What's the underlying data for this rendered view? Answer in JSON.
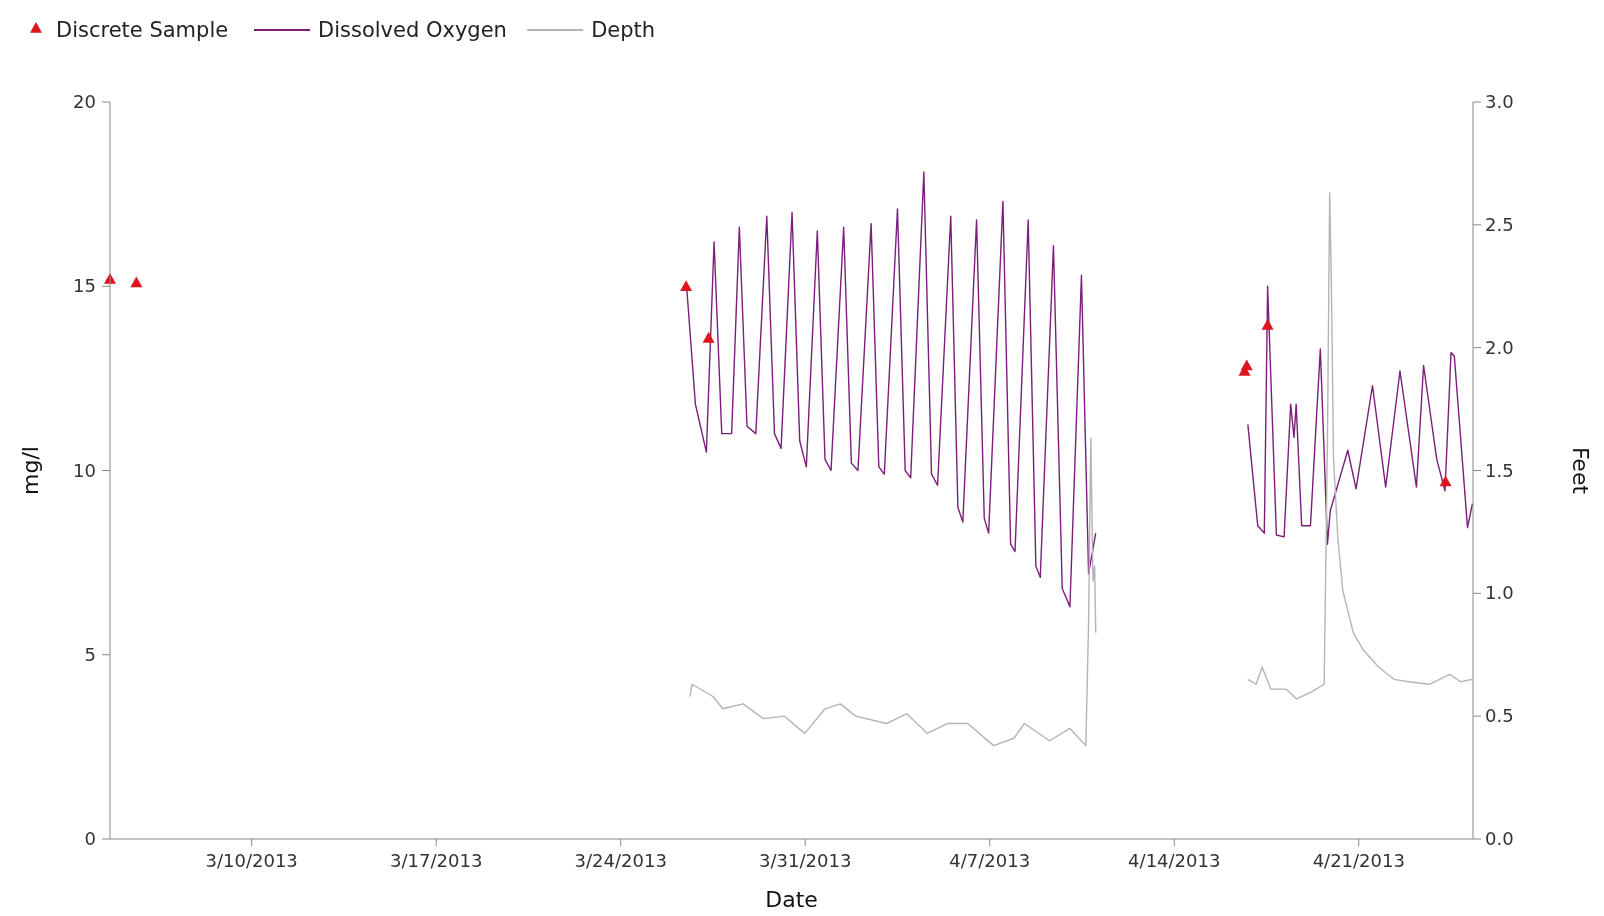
{
  "chart_data": {
    "type": "line",
    "xlabel": "Date",
    "ylabel": "mg/l",
    "y2label": "Feet",
    "xlim": [
      "2013-03-04T15:00",
      "2013-04-25T08:00"
    ],
    "xticks": [
      {
        "value": "2013-03-10",
        "label": "3/10/2013"
      },
      {
        "value": "2013-03-17",
        "label": "3/17/2013"
      },
      {
        "value": "2013-03-24",
        "label": "3/24/2013"
      },
      {
        "value": "2013-03-31",
        "label": "3/31/2013"
      },
      {
        "value": "2013-04-07",
        "label": "4/7/2013"
      },
      {
        "value": "2013-04-14",
        "label": "4/14/2013"
      },
      {
        "value": "2013-04-21",
        "label": "4/21/2013"
      }
    ],
    "ylim": [
      0,
      20
    ],
    "yticks": [
      0,
      5,
      10,
      15,
      20
    ],
    "y2lim": [
      0,
      3
    ],
    "y2ticks": [
      {
        "value": 0,
        "label": "0.0"
      },
      0.5,
      {
        "value": 1,
        "label": "1.0"
      },
      1.5,
      {
        "value": 2,
        "label": "2.0"
      },
      2.5,
      {
        "value": 3,
        "label": "3.0"
      }
    ],
    "legend": "top left",
    "grid": false,
    "line_style": "solid",
    "series": [
      {
        "name": "Discrete Sample",
        "type": "scatter",
        "marker": "triangle",
        "color": "#e0141e",
        "x": [
          "2013-03-04T15:00",
          "2013-03-05T15:00",
          "2013-03-26T11:30",
          "2013-03-27T08:00",
          "2013-04-16T16:00",
          "2013-04-16T18:00",
          "2013-04-17T13:00",
          "2013-04-24T07:00"
        ],
        "values": [
          15.2,
          15.1,
          15.0,
          13.6,
          12.7,
          12.85,
          13.95,
          9.7
        ]
      },
      {
        "name": "Dissolved Oxygen",
        "color": "#7b1f7a",
        "x": [
          "2013-03-26T12:00",
          "2013-03-26T20:00",
          "2013-03-27T06:00",
          "2013-03-27T13:00",
          "2013-03-27T20:00",
          "2013-03-28T05:00",
          "2013-03-28T12:00",
          "2013-03-28T19:00",
          "2013-03-29T03:00",
          "2013-03-29T13:00",
          "2013-03-29T20:00",
          "2013-03-30T02:00",
          "2013-03-30T12:00",
          "2013-03-30T19:00",
          "2013-03-31T01:00",
          "2013-03-31T11:00",
          "2013-03-31T18:00",
          "2013-03-31T23:30",
          "2013-04-01T11:00",
          "2013-04-01T18:00",
          "2013-04-02T00:00",
          "2013-04-02T12:00",
          "2013-04-02T19:00",
          "2013-04-03T00:00",
          "2013-04-03T12:00",
          "2013-04-03T19:00",
          "2013-04-04T00:00",
          "2013-04-04T12:00",
          "2013-04-04T19:00",
          "2013-04-05T00:30",
          "2013-04-05T12:30",
          "2013-04-05T19:00",
          "2013-04-05T23:30",
          "2013-04-06T12:00",
          "2013-04-06T19:00",
          "2013-04-06T23:00",
          "2013-04-07T12:00",
          "2013-04-07T19:00",
          "2013-04-07T23:00",
          "2013-04-08T11:00",
          "2013-04-08T18:00",
          "2013-04-08T22:00",
          "2013-04-09T10:00",
          "2013-04-09T18:00",
          "2013-04-10T01:00",
          "2013-04-10T11:30",
          "2013-04-10T18:00",
          "2013-04-11T00:30",
          "2013-04-13T00:00",
          "2013-04-16T19:00",
          "2013-04-17T04:00",
          "2013-04-17T10:00",
          "2013-04-17T13:00",
          "2013-04-17T21:00",
          "2013-04-18T04:00",
          "2013-04-18T10:00",
          "2013-04-18T13:00",
          "2013-04-18T15:00",
          "2013-04-18T20:00",
          "2013-04-19T04:00",
          "2013-04-19T13:00",
          "2013-04-19T19:30",
          "2013-04-19T22:00",
          "2013-04-20T14:00",
          "2013-04-20T21:30",
          "2013-04-21T12:30",
          "2013-04-22T00:30",
          "2013-04-22T13:30",
          "2013-04-23T04:30",
          "2013-04-23T11:00",
          "2013-04-23T23:00",
          "2013-04-24T06:30",
          "2013-04-24T12:00",
          "2013-04-24T15:00",
          "2013-04-25T03:00",
          "2013-04-25T07:30"
        ],
        "values": [
          15.0,
          11.8,
          10.5,
          16.2,
          11.0,
          11.0,
          16.6,
          11.2,
          11.0,
          16.9,
          11.0,
          10.6,
          17.0,
          10.8,
          10.1,
          16.5,
          10.3,
          10.0,
          16.6,
          10.2,
          10.0,
          16.7,
          10.1,
          9.9,
          17.1,
          10.0,
          9.8,
          18.1,
          9.9,
          9.6,
          16.9,
          9.0,
          8.6,
          16.8,
          8.7,
          8.3,
          17.3,
          8.0,
          7.8,
          16.8,
          7.4,
          7.1,
          16.1,
          6.8,
          6.3,
          15.3,
          7.2,
          8.3,
          null,
          11.25,
          8.5,
          8.3,
          15.0,
          8.25,
          8.2,
          11.8,
          10.9,
          11.8,
          8.5,
          8.5,
          13.3,
          8.0,
          8.9,
          10.55,
          9.5,
          12.3,
          9.55,
          12.7,
          9.55,
          12.85,
          10.3,
          9.45,
          13.2,
          13.1,
          8.45,
          9.1
        ]
      },
      {
        "name": "Depth",
        "axis": "y2",
        "color": "#b4b4b4",
        "x": [
          "2013-03-26T15:00",
          "2013-03-26T17:00",
          "2013-03-27T12:00",
          "2013-03-27T21:00",
          "2013-03-28T15:30",
          "2013-03-29T10:00",
          "2013-03-30T05:00",
          "2013-03-30T23:30",
          "2013-03-31T18:00",
          "2013-04-01T08:00",
          "2013-04-01T22:00",
          "2013-04-03T02:00",
          "2013-04-03T20:30",
          "2013-04-04T15:00",
          "2013-04-05T09:30",
          "2013-04-06T04:00",
          "2013-04-07T03:30",
          "2013-04-07T22:00",
          "2013-04-08T07:30",
          "2013-04-09T06:30",
          "2013-04-10T01:00",
          "2013-04-10T15:30",
          "2013-04-10T18:00",
          "2013-04-10T20:00",
          "2013-04-10T22:00",
          "2013-04-10T23:30",
          "2013-04-11T00:30",
          "2013-04-13T00:00",
          "2013-04-16T19:00",
          "2013-04-17T02:30",
          "2013-04-17T08:00",
          "2013-04-17T16:00",
          "2013-04-18T06:00",
          "2013-04-18T15:30",
          "2013-04-19T05:30",
          "2013-04-19T16:30",
          "2013-04-19T19:30",
          "2013-04-19T21:30",
          "2013-04-19T23:00",
          "2013-04-20T01:00",
          "2013-04-20T05:00",
          "2013-04-20T09:30",
          "2013-04-20T19:00",
          "2013-04-21T04:00",
          "2013-04-21T18:00",
          "2013-04-22T08:00",
          "2013-04-22T21:30",
          "2013-04-23T16:30",
          "2013-04-24T11:00",
          "2013-04-24T20:30",
          "2013-04-25T07:30"
        ],
        "values": [
          0.58,
          0.63,
          0.58,
          0.53,
          0.55,
          0.49,
          0.5,
          0.43,
          0.53,
          0.55,
          0.5,
          0.47,
          0.51,
          0.43,
          0.47,
          0.47,
          0.38,
          0.41,
          0.47,
          0.4,
          0.45,
          0.38,
          0.88,
          1.63,
          1.05,
          1.11,
          0.84,
          null,
          0.65,
          0.63,
          0.7,
          0.61,
          0.61,
          0.57,
          0.6,
          0.63,
          1.63,
          2.63,
          2.28,
          1.55,
          1.22,
          1.01,
          0.84,
          0.77,
          0.7,
          0.65,
          0.64,
          0.63,
          0.67,
          0.64,
          0.65
        ]
      }
    ]
  }
}
